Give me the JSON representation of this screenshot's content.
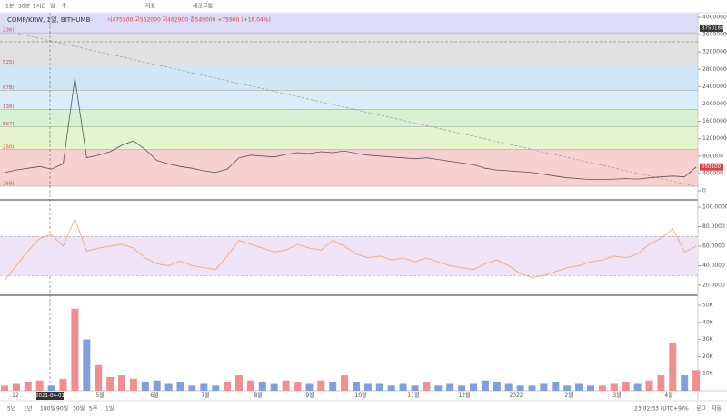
{
  "toolbar": [
    "1분",
    "30분",
    "1시간",
    "일",
    "주",
    "지표",
    "세로그림"
  ],
  "legend": {
    "symbol": "COMP/KRW, 1일, BITHUMB",
    "ohlc": "시475500 고562000 저462900 종549000 +75900 (+16.04%)"
  },
  "chart_data": {
    "type": "line",
    "price": {
      "values": [
        420000,
        480000,
        520000,
        560000,
        500000,
        620000,
        2600000,
        760000,
        820000,
        900000,
        1050000,
        1150000,
        950000,
        700000,
        620000,
        560000,
        520000,
        460000,
        420000,
        500000,
        760000,
        820000,
        800000,
        780000,
        840000,
        880000,
        860000,
        900000,
        880000,
        920000,
        860000,
        820000,
        800000,
        780000,
        760000,
        740000,
        760000,
        720000,
        680000,
        640000,
        600000,
        520000,
        480000,
        460000,
        440000,
        420000,
        380000,
        340000,
        300000,
        280000,
        260000,
        260000,
        270000,
        280000,
        270000,
        300000,
        320000,
        340000,
        320000,
        549000
      ],
      "color": "#555555",
      "ylim": [
        0,
        4000000
      ],
      "yticks": [
        0,
        400000,
        800000,
        1200000,
        1600000,
        2000000,
        2400000,
        2800000,
        3200000,
        3600000,
        4000000
      ],
      "crosshair_price": 3750188,
      "last_price": 550100
    },
    "fib_levels": [
      {
        "label": "236)",
        "value": 3642000
      },
      {
        "label": "525)",
        "value": 2905000
      },
      {
        "label": "678)",
        "value": 2316000
      },
      {
        "label": "138)",
        "value": 1874000
      },
      {
        "label": "597)",
        "value": 1474000
      },
      {
        "label": "250)",
        "value": 947000
      },
      {
        "label": "269)",
        "value": 105000
      }
    ],
    "rsi": {
      "values": [
        25,
        40,
        55,
        68,
        72,
        60,
        88,
        55,
        58,
        60,
        62,
        58,
        48,
        42,
        40,
        45,
        40,
        38,
        36,
        50,
        66,
        62,
        58,
        54,
        56,
        62,
        58,
        56,
        66,
        60,
        52,
        48,
        50,
        46,
        48,
        44,
        48,
        44,
        40,
        38,
        36,
        42,
        46,
        40,
        32,
        28,
        30,
        34,
        38,
        40,
        44,
        46,
        50,
        48,
        52,
        62,
        68,
        78,
        54,
        60
      ],
      "color": "#f4a36b",
      "ylim": [
        20,
        100
      ],
      "yticks": [
        {
          "value": 20,
          "label": "20.0000"
        },
        {
          "value": 40,
          "label": "40.0000"
        },
        {
          "value": 60,
          "label": "60.0000"
        },
        {
          "value": 80,
          "label": "80.0000"
        },
        {
          "value": 100,
          "label": "100.0000"
        }
      ],
      "band": [
        30,
        70
      ]
    },
    "volume": {
      "values": [
        3000,
        4000,
        5000,
        6000,
        3000,
        7000,
        48000,
        30000,
        15000,
        8000,
        9000,
        7000,
        5000,
        6000,
        4000,
        5000,
        3000,
        4000,
        3000,
        5000,
        9000,
        6000,
        5000,
        4000,
        6000,
        5000,
        4000,
        6000,
        5000,
        9000,
        5000,
        4000,
        4000,
        3000,
        4000,
        3000,
        5000,
        3000,
        4000,
        3000,
        4000,
        6000,
        5000,
        4000,
        3000,
        3000,
        4000,
        5000,
        3000,
        4000,
        3000,
        3000,
        4000,
        5000,
        4000,
        6000,
        9000,
        28000,
        9000,
        12000
      ],
      "up_color": "#ef8f8f",
      "down_color": "#7f9fe0",
      "ylim": [
        0,
        50000
      ],
      "yticks": [
        {
          "value": 10000,
          "label": "10K"
        },
        {
          "value": 20000,
          "label": "20K"
        },
        {
          "value": 30000,
          "label": "30K"
        },
        {
          "value": 40000,
          "label": "40K"
        },
        {
          "value": 50000,
          "label": "50K"
        }
      ]
    },
    "x_labels": [
      "12",
      "5월",
      "6월",
      "7월",
      "8월",
      "9월",
      "10월",
      "11월",
      "12월",
      "2022",
      "2월",
      "3월",
      "4월"
    ],
    "crosshair_date": "2021-04-01"
  },
  "footer": {
    "ranges": [
      "5년",
      "1년",
      "180일",
      "90일",
      "30일",
      "5주",
      "1일"
    ],
    "time": "23:02:33 (UTC+9)",
    "percent": "%",
    "log": "로그",
    "auto": "자동"
  }
}
